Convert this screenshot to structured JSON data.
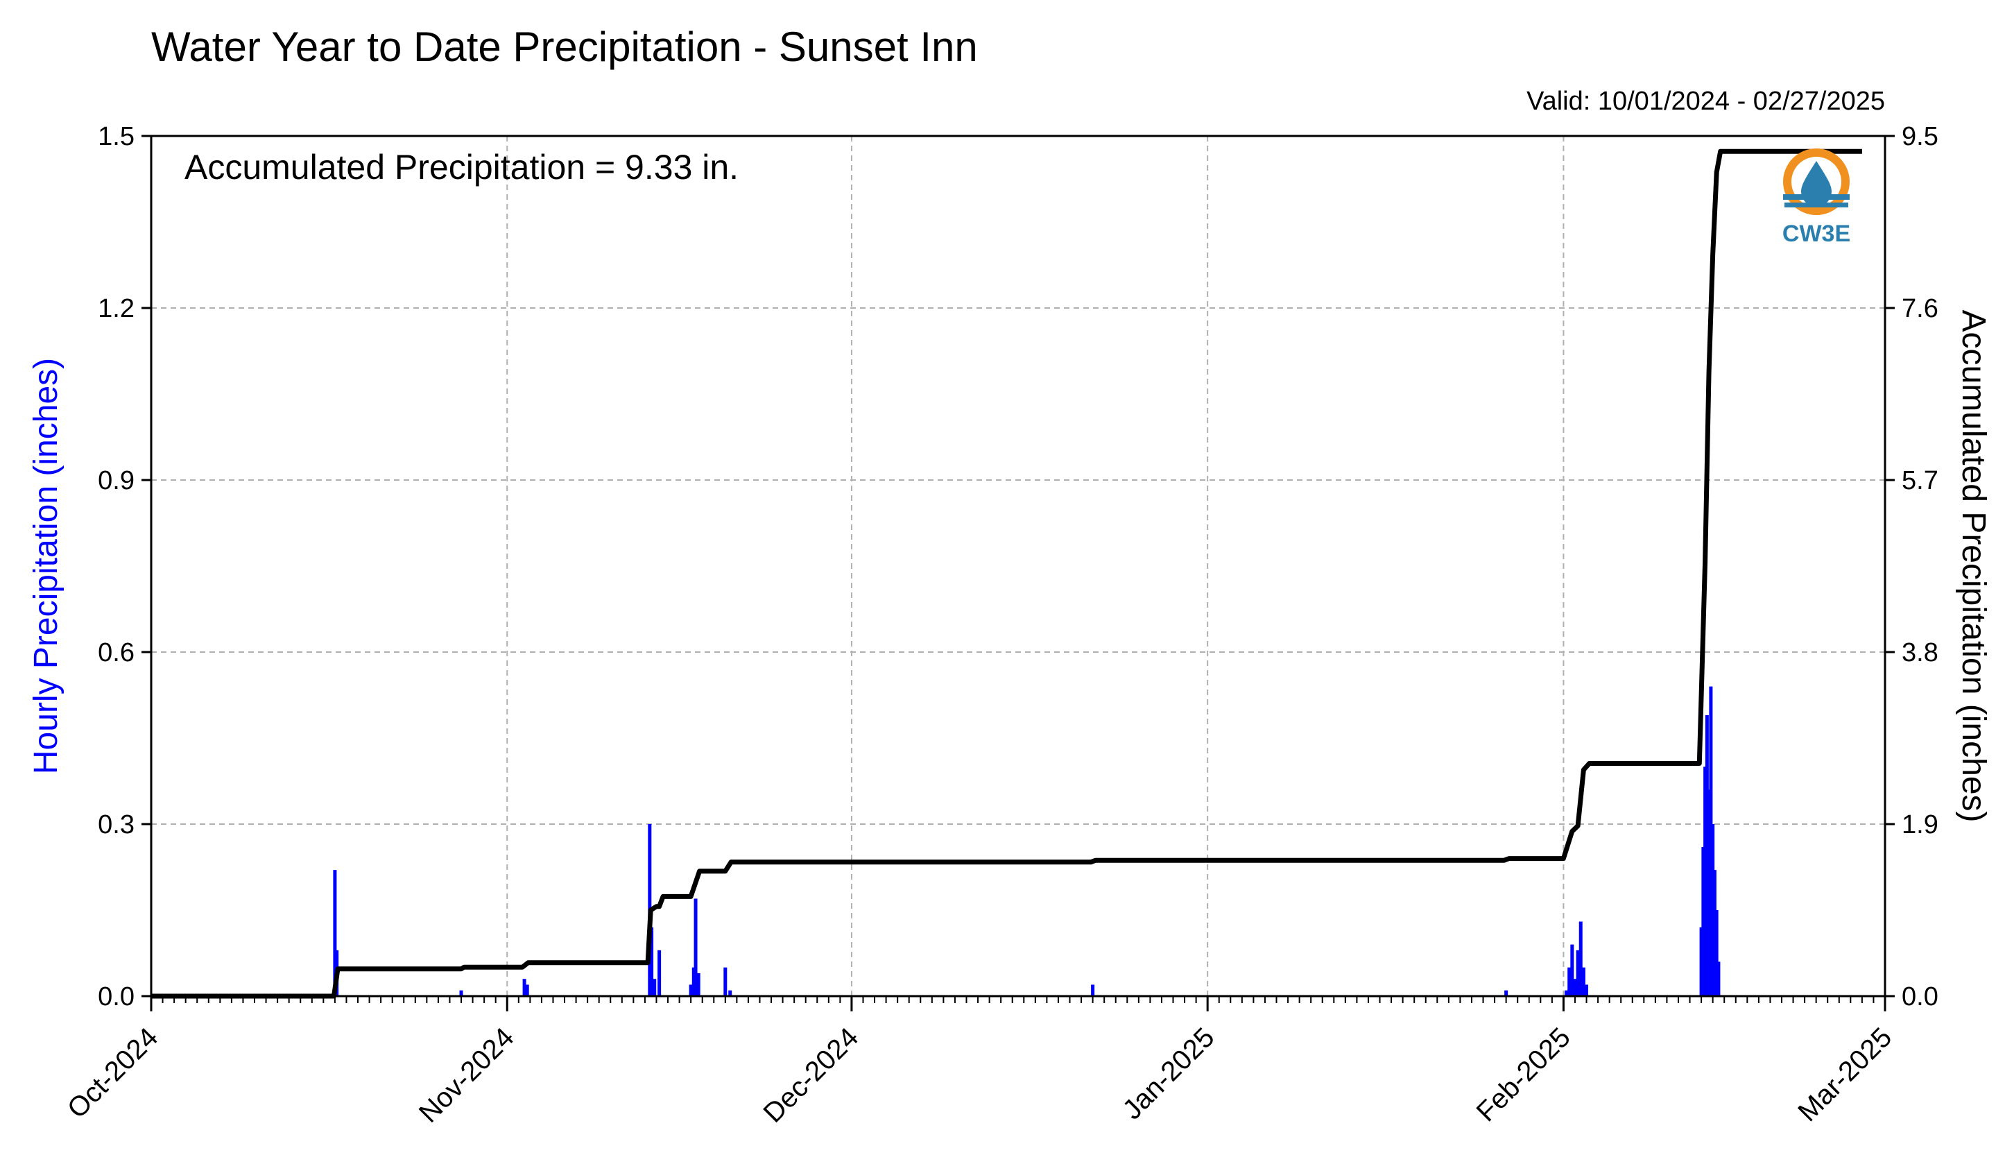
{
  "title": "Water Year to Date Precipitation - Sunset Inn",
  "valid_text": "Valid: 10/01/2024 - 02/27/2025",
  "logo": {
    "icon": "cw3e-logo-icon",
    "text": "CW3E",
    "colors": {
      "orange": "#f0901e",
      "blue": "#2a7fae"
    }
  },
  "chart_data": {
    "type": "bar+line",
    "xlim": [
      "2024-10-01",
      "2025-03-01"
    ],
    "xticks": [
      {
        "date": "2024-10-01",
        "label": "Oct-2024"
      },
      {
        "date": "2024-11-01",
        "label": "Nov-2024"
      },
      {
        "date": "2024-12-01",
        "label": "Dec-2024"
      },
      {
        "date": "2025-01-01",
        "label": "Jan-2025"
      },
      {
        "date": "2025-02-01",
        "label": "Feb-2025"
      },
      {
        "date": "2025-03-01",
        "label": "Mar-2025"
      }
    ],
    "grid": true,
    "left_axis": {
      "label": "Hourly Precipitation (inches)",
      "ylim": [
        0,
        1.5
      ],
      "ticks": [
        "0.0",
        "0.3",
        "0.6",
        "0.9",
        "1.2",
        "1.5"
      ],
      "color": "#0000ff"
    },
    "right_axis": {
      "label": "Accumulated Precipitation (inches)",
      "ylim": [
        0,
        9.5
      ],
      "ticks": [
        "0.0",
        "1.9",
        "3.8",
        "5.7",
        "7.6",
        "9.5"
      ],
      "color": "#000000"
    },
    "annotation": "Accumulated Precipitation = 9.33 in.",
    "hourly_series": {
      "axis": "left",
      "color": "#0000ff",
      "points": [
        [
          "2024-10-17T00:00",
          0.22
        ],
        [
          "2024-10-17T04:00",
          0.08
        ],
        [
          "2024-10-28T00:00",
          0.01
        ],
        [
          "2024-11-02T12:00",
          0.03
        ],
        [
          "2024-11-02T18:00",
          0.02
        ],
        [
          "2024-11-13T10:00",
          0.3
        ],
        [
          "2024-11-13T14:00",
          0.12
        ],
        [
          "2024-11-13T20:00",
          0.03
        ],
        [
          "2024-11-14T06:00",
          0.08
        ],
        [
          "2024-11-17T00:00",
          0.02
        ],
        [
          "2024-11-17T06:00",
          0.05
        ],
        [
          "2024-11-17T10:00",
          0.17
        ],
        [
          "2024-11-17T16:00",
          0.04
        ],
        [
          "2024-11-20T00:00",
          0.05
        ],
        [
          "2024-11-20T10:00",
          0.01
        ],
        [
          "2024-12-22T00:00",
          0.02
        ],
        [
          "2025-01-27T00:00",
          0.01
        ],
        [
          "2025-02-01T06:00",
          0.01
        ],
        [
          "2025-02-01T12:00",
          0.05
        ],
        [
          "2025-02-01T18:00",
          0.09
        ],
        [
          "2025-02-02T00:00",
          0.03
        ],
        [
          "2025-02-02T06:00",
          0.08
        ],
        [
          "2025-02-02T12:00",
          0.13
        ],
        [
          "2025-02-02T18:00",
          0.05
        ],
        [
          "2025-02-03T00:00",
          0.02
        ],
        [
          "2025-02-13T00:00",
          0.12
        ],
        [
          "2025-02-13T04:00",
          0.26
        ],
        [
          "2025-02-13T08:00",
          0.4
        ],
        [
          "2025-02-13T12:00",
          0.49
        ],
        [
          "2025-02-13T16:00",
          0.36
        ],
        [
          "2025-02-13T20:00",
          0.54
        ],
        [
          "2025-02-14T00:00",
          0.3
        ],
        [
          "2025-02-14T04:00",
          0.22
        ],
        [
          "2025-02-14T08:00",
          0.15
        ],
        [
          "2025-02-14T12:00",
          0.06
        ]
      ]
    },
    "accumulated_series": {
      "axis": "right",
      "color": "#000000",
      "points": [
        [
          "2024-10-01T00:00",
          0.0
        ],
        [
          "2024-10-16T22:00",
          0.0
        ],
        [
          "2024-10-17T06:00",
          0.3
        ],
        [
          "2024-10-28T00:00",
          0.3
        ],
        [
          "2024-10-28T06:00",
          0.32
        ],
        [
          "2024-11-02T08:00",
          0.32
        ],
        [
          "2024-11-02T20:00",
          0.37
        ],
        [
          "2024-11-13T06:00",
          0.37
        ],
        [
          "2024-11-13T12:00",
          0.95
        ],
        [
          "2024-11-14T00:00",
          0.99
        ],
        [
          "2024-11-14T06:00",
          0.99
        ],
        [
          "2024-11-14T14:00",
          1.1
        ],
        [
          "2024-11-17T00:00",
          1.1
        ],
        [
          "2024-11-17T18:00",
          1.38
        ],
        [
          "2024-11-20T00:00",
          1.38
        ],
        [
          "2024-11-20T12:00",
          1.48
        ],
        [
          "2024-12-21T20:00",
          1.48
        ],
        [
          "2024-12-22T06:00",
          1.5
        ],
        [
          "2025-01-26T20:00",
          1.5
        ],
        [
          "2025-01-27T06:00",
          1.52
        ],
        [
          "2025-02-01T00:00",
          1.52
        ],
        [
          "2025-02-01T18:00",
          1.82
        ],
        [
          "2025-02-02T06:00",
          1.88
        ],
        [
          "2025-02-02T18:00",
          2.5
        ],
        [
          "2025-02-03T06:00",
          2.57
        ],
        [
          "2025-02-12T20:00",
          2.57
        ],
        [
          "2025-02-13T08:00",
          4.8
        ],
        [
          "2025-02-13T16:00",
          6.9
        ],
        [
          "2025-02-14T00:00",
          8.2
        ],
        [
          "2025-02-14T08:00",
          9.1
        ],
        [
          "2025-02-14T16:00",
          9.33
        ],
        [
          "2025-02-27T00:00",
          9.33
        ]
      ]
    }
  }
}
